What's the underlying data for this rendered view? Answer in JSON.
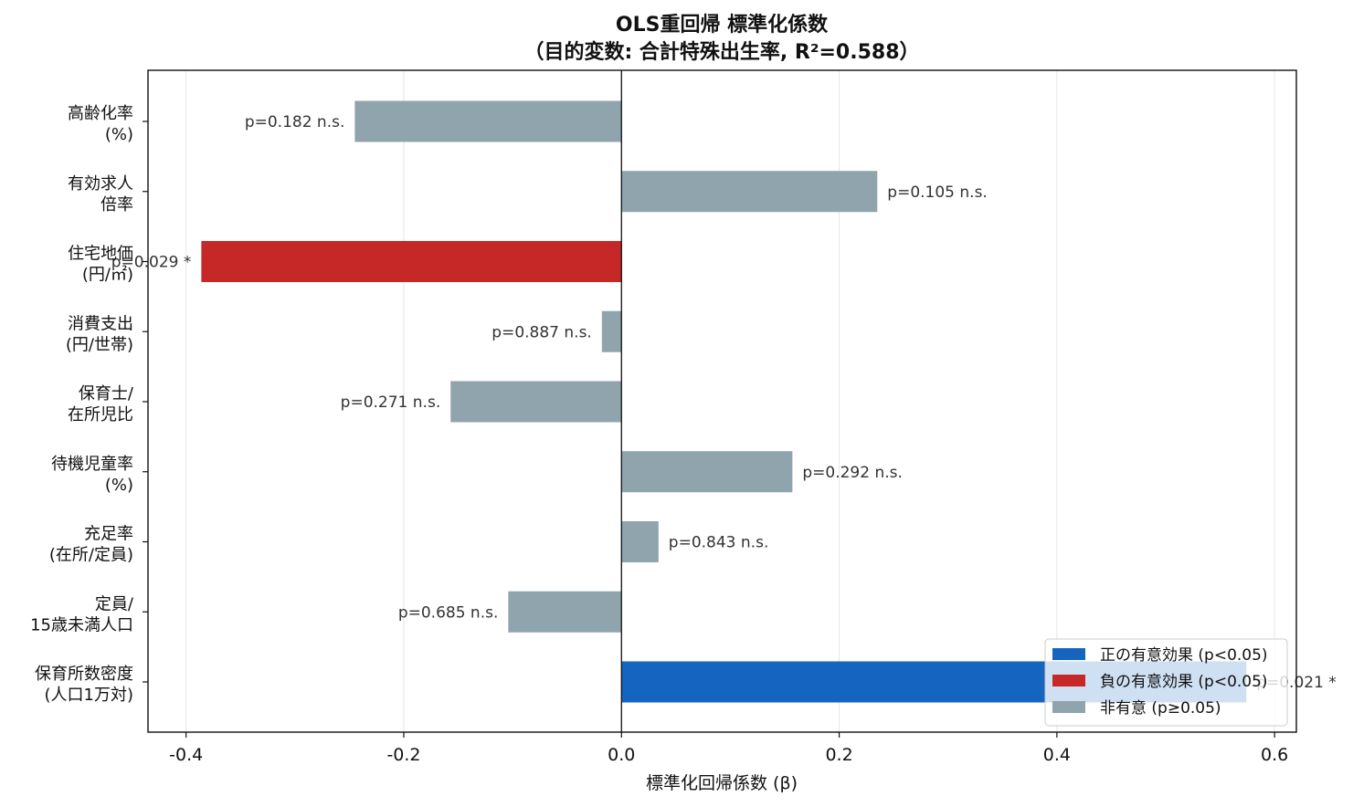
{
  "chart_data": {
    "type": "bar",
    "orientation": "horizontal",
    "title_lines": [
      "OLS重回帰 標準化係数",
      "（目的変数: 合計特殊出生率, R²=0.588）"
    ],
    "xlabel": "標準化回帰係数 (β)",
    "xlim": [
      -0.435,
      0.62
    ],
    "xticks": [
      -0.4,
      -0.2,
      0.0,
      0.2,
      0.4,
      0.6
    ],
    "xtick_labels": [
      "-0.4",
      "-0.2",
      "0.0",
      "0.2",
      "0.4",
      "0.6"
    ],
    "grid": "x",
    "legend_position": "lower-right",
    "colors": {
      "positive": "#1565c0",
      "negative": "#c62828",
      "ns": "#90a4ae"
    },
    "legend": [
      {
        "label": "正の有意効果 (p<0.05)",
        "key": "positive"
      },
      {
        "label": "負の有意効果 (p<0.05)",
        "key": "negative"
      },
      {
        "label": "非有意 (p≥0.05)",
        "key": "ns"
      }
    ],
    "bars": [
      {
        "label": [
          "高齢化率",
          "(%)"
        ],
        "value": -0.245,
        "p_label": "p=0.182 n.s.",
        "sig": "ns"
      },
      {
        "label": [
          "有効求人",
          "倍率"
        ],
        "value": 0.235,
        "p_label": "p=0.105 n.s.",
        "sig": "ns"
      },
      {
        "label": [
          "住宅地価",
          "(円/㎡)"
        ],
        "value": -0.386,
        "p_label": "p=0.029 *",
        "sig": "negative"
      },
      {
        "label": [
          "消費支出",
          "(円/世帯)"
        ],
        "value": -0.018,
        "p_label": "p=0.887 n.s.",
        "sig": "ns"
      },
      {
        "label": [
          "保育士/",
          "在所児比"
        ],
        "value": -0.157,
        "p_label": "p=0.271 n.s.",
        "sig": "ns"
      },
      {
        "label": [
          "待機児童率",
          "(%)"
        ],
        "value": 0.157,
        "p_label": "p=0.292 n.s.",
        "sig": "ns"
      },
      {
        "label": [
          "充足率",
          "(在所/定員)"
        ],
        "value": 0.034,
        "p_label": "p=0.843 n.s.",
        "sig": "ns"
      },
      {
        "label": [
          "定員/",
          "15歳未満人口"
        ],
        "value": -0.104,
        "p_label": "p=0.685 n.s.",
        "sig": "ns"
      },
      {
        "label": [
          "保育所数密度",
          "(人口1万対)"
        ],
        "value": 0.574,
        "p_label": "p=0.021 *",
        "sig": "positive"
      }
    ]
  }
}
